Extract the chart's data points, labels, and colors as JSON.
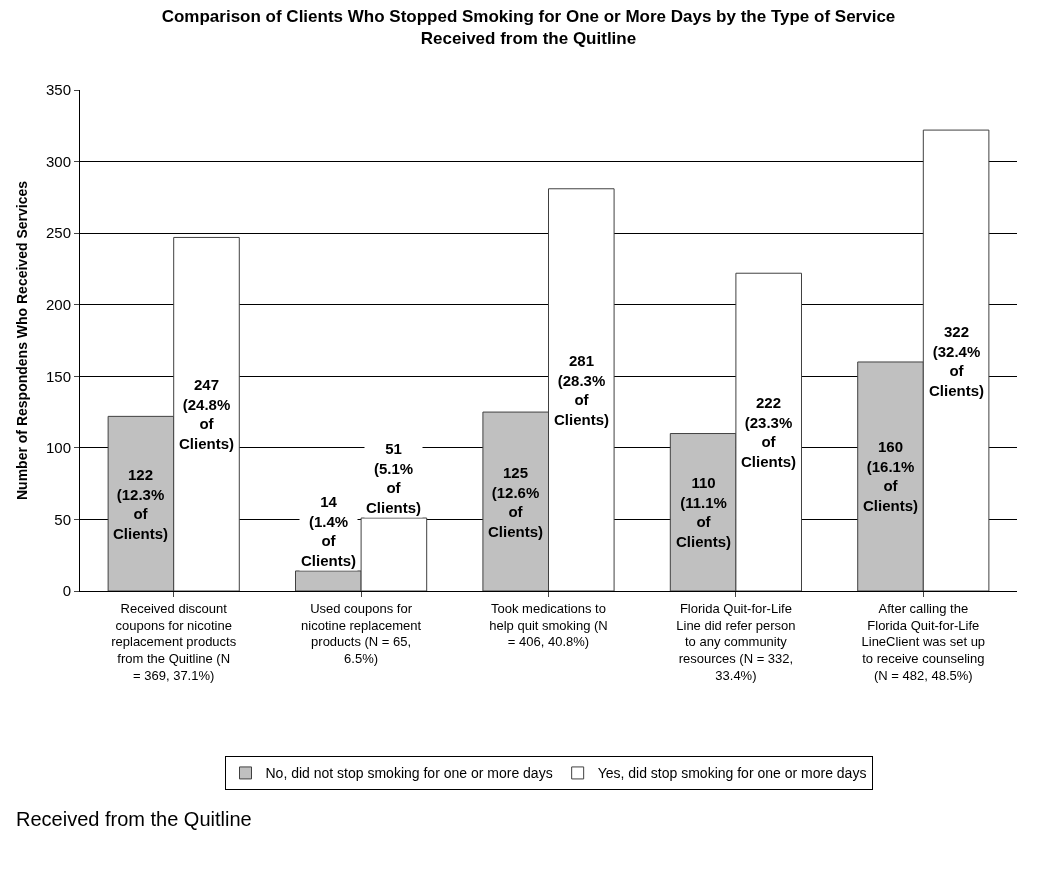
{
  "chart_data": {
    "type": "bar",
    "title": "Comparison of Clients Who Stopped Smoking for One or More Days by the Type of Service Received from the Quitline",
    "ylabel": "Number of Respondens Who Received Services",
    "categories": [
      "Received discount coupons for nicotine replacement products from the Quitline (N = 369, 37.1%)",
      "Used coupons for nicotine replacement products (N = 65, 6.5%)",
      "Took medications to help quit smoking (N = 406, 40.8%)",
      "Florida Quit-for-Life Line did refer person to any community resources (N = 332, 33.4%)",
      "After calling the Florida Quit-for-Life LineClient was set up to receive counseling (N = 482, 48.5%)"
    ],
    "series": [
      {
        "name": "No, did not stop smoking for one or more days",
        "color": "#c0c0c0",
        "values": [
          122,
          14,
          125,
          110,
          160
        ],
        "value_labels": [
          "122 (12.3% of Clients)",
          "14 (1.4% of Clients)",
          "125 (12.6% of Clients)",
          "110 (11.1% of Clients)",
          "160 (16.1% of Clients)"
        ]
      },
      {
        "name": "Yes, did stop smoking for one or more days",
        "color": "#ffffff",
        "values": [
          247,
          51,
          281,
          222,
          322
        ],
        "value_labels": [
          "247 (24.8% of Clients)",
          "51 (5.1% of Clients)",
          "281 (28.3% of Clients)",
          "222 (23.3% of Clients)",
          "322 (32.4% of Clients)"
        ]
      }
    ],
    "ylim": [
      0,
      350
    ],
    "yticks": [
      0,
      50,
      100,
      150,
      200,
      250,
      300,
      350
    ],
    "grid": "y",
    "legend": "bottom",
    "annotations": [
      "Received from the Quitline"
    ]
  }
}
